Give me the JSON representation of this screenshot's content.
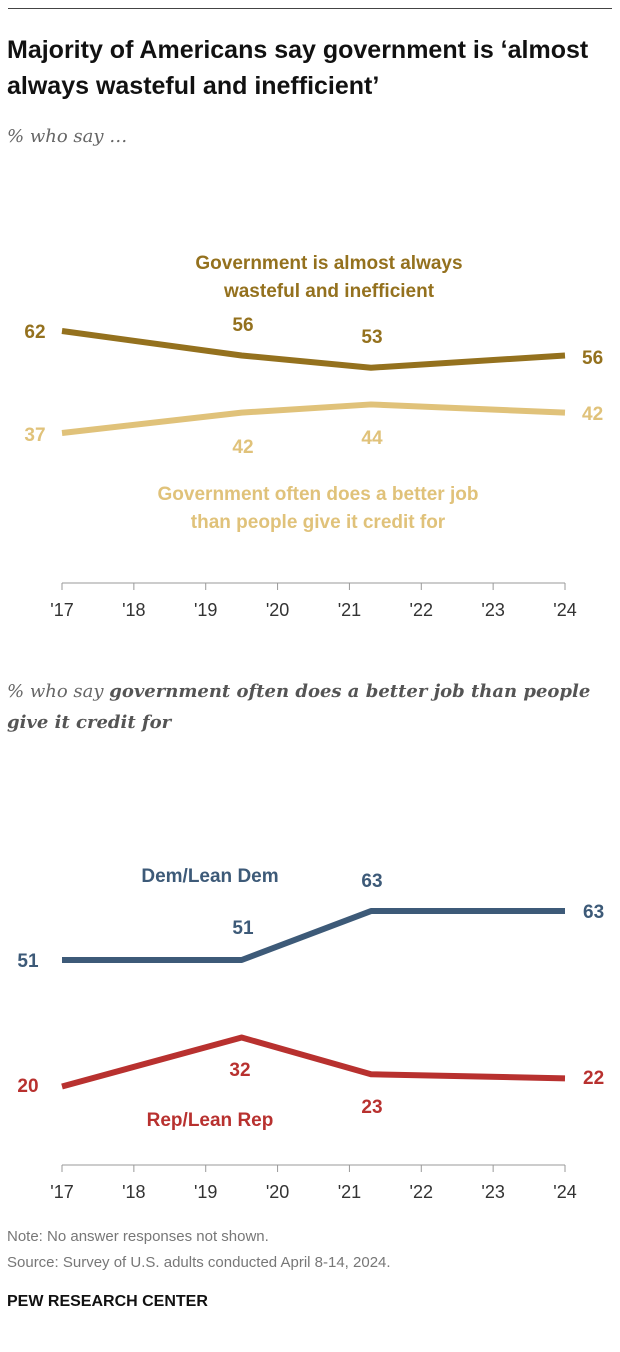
{
  "title": "Majority of Americans say government is ‘almost always wasteful and inefficient’",
  "subtitle": "% who say …",
  "subtitle2_prefix": "% who say ",
  "subtitle2_emphasis": "government often does a better job than people give it credit for",
  "note": "Note: No answer responses not shown.",
  "source": "Source: Survey of U.S. adults conducted April 8-14, 2024.",
  "brand": "PEW RESEARCH CENTER",
  "chart_data": [
    {
      "type": "line",
      "x": [
        2017,
        2019.5,
        2021.3,
        2024
      ],
      "xlim": [
        2017,
        2024
      ],
      "tick_labels": [
        "'17",
        "'18",
        "'19",
        "'20",
        "'21",
        "'22",
        "'23",
        "'24"
      ],
      "grid": false,
      "series": [
        {
          "name": "Government is almost always wasteful and inefficient",
          "name_lines": [
            "Government is almost always",
            "wasteful and inefficient"
          ],
          "values": [
            62,
            56,
            53,
            56
          ],
          "color": "#94711e"
        },
        {
          "name": "Government often does a better job than people give it credit for",
          "name_lines": [
            "Government often does a better job",
            "than people give it credit for"
          ],
          "values": [
            37,
            42,
            44,
            42
          ],
          "color": "#e0c27a"
        }
      ]
    },
    {
      "type": "line",
      "x": [
        2017,
        2019.5,
        2021.3,
        2024
      ],
      "xlim": [
        2017,
        2024
      ],
      "tick_labels": [
        "'17",
        "'18",
        "'19",
        "'20",
        "'21",
        "'22",
        "'23",
        "'24"
      ],
      "grid": false,
      "series": [
        {
          "name": "Dem/Lean Dem",
          "name_lines": [
            "Dem/Lean Dem"
          ],
          "values": [
            51,
            51,
            63,
            63
          ],
          "color": "#3d5a78"
        },
        {
          "name": "Rep/Lean Rep",
          "name_lines": [
            "Rep/Lean Rep"
          ],
          "values": [
            20,
            32,
            23,
            22
          ],
          "color": "#b8312f"
        }
      ]
    }
  ]
}
